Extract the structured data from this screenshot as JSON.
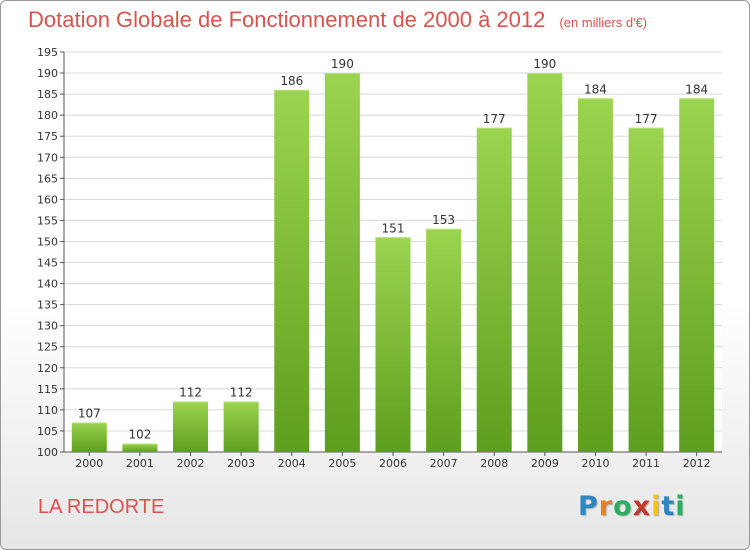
{
  "chart_data": {
    "type": "bar",
    "title": "Dotation Globale de Fonctionnement de 2000 à 2012",
    "subtitle": "(en milliers d'€)",
    "xlabel": "",
    "ylabel": "",
    "categories": [
      "2000",
      "2001",
      "2002",
      "2003",
      "2004",
      "2005",
      "2006",
      "2007",
      "2008",
      "2009",
      "2010",
      "2011",
      "2012"
    ],
    "values": [
      107,
      102,
      112,
      112,
      186,
      190,
      151,
      153,
      177,
      190,
      184,
      177,
      184
    ],
    "ylim": [
      100,
      195
    ],
    "yticks": [
      100,
      105,
      110,
      115,
      120,
      125,
      130,
      135,
      140,
      145,
      150,
      155,
      160,
      165,
      170,
      175,
      180,
      185,
      190,
      195
    ],
    "grid": true,
    "bar_color": "#7cc234"
  },
  "footer": {
    "city": "LA REDORTE",
    "logo_letters": [
      "P",
      "r",
      "o",
      "x",
      "i",
      "t",
      "i"
    ],
    "logo_colors": [
      "#2e86c1",
      "#e67e22",
      "#27ae60",
      "#c0392b",
      "#f1c40f",
      "#2e86c1",
      "#27ae60"
    ]
  }
}
